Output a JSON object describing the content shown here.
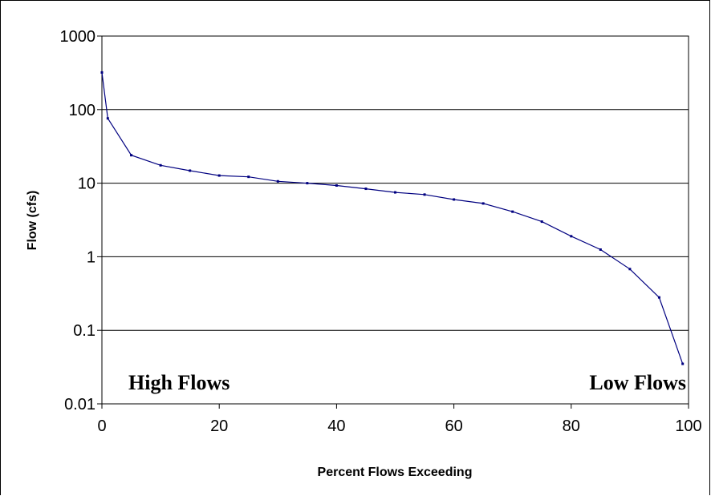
{
  "chart_data": {
    "type": "line",
    "title": "",
    "xlabel": "Percent Flows Exceeding",
    "ylabel": "Flow (cfs)",
    "xlim": [
      0,
      100
    ],
    "ylim": [
      0.01,
      1000
    ],
    "y_scale": "log",
    "grid": "horizontal major gridlines",
    "legend": "none",
    "line_color": "#000080",
    "x_ticks": [
      0,
      20,
      40,
      60,
      80,
      100
    ],
    "x_tick_labels": [
      "0",
      "20",
      "40",
      "60",
      "80",
      "100"
    ],
    "y_ticks": [
      0.01,
      0.1,
      1,
      10,
      100,
      1000
    ],
    "y_tick_labels": [
      "0.01",
      "0.1",
      "1",
      "10",
      "100",
      "1000"
    ],
    "series": [
      {
        "x": [
          0,
          1,
          5,
          10,
          15,
          20,
          25,
          30,
          35,
          40,
          45,
          50,
          55,
          60,
          65,
          70,
          75,
          80,
          85,
          90,
          95,
          99
        ],
        "y": [
          320,
          76,
          24,
          17.5,
          14.8,
          12.7,
          12.2,
          10.6,
          10,
          9.3,
          8.4,
          7.5,
          7.0,
          6.0,
          5.3,
          4.1,
          3.0,
          1.9,
          1.25,
          0.68,
          0.28,
          0.035
        ]
      }
    ],
    "annotations": [
      {
        "text": "High Flows",
        "anchor": "lower-left"
      },
      {
        "text": "Low Flows",
        "anchor": "lower-right"
      }
    ]
  }
}
